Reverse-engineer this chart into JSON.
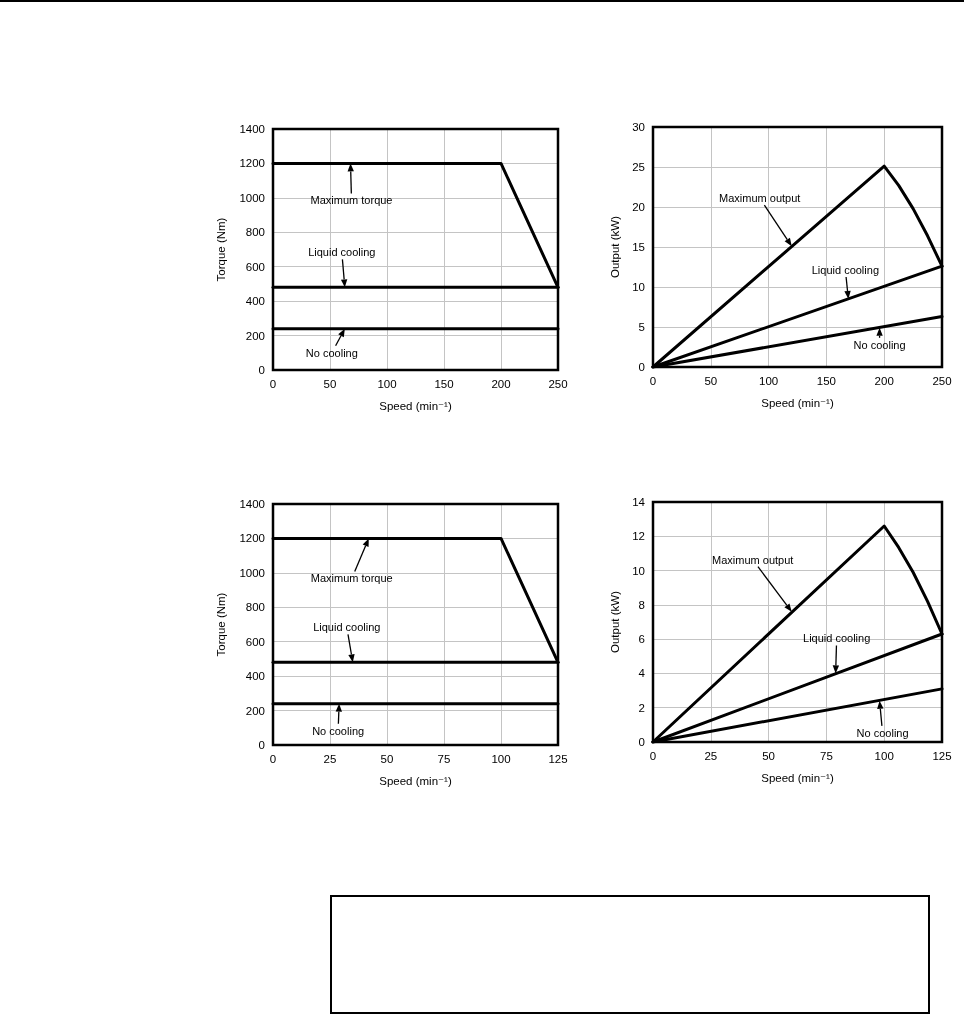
{
  "chart_data": [
    {
      "type": "line",
      "xlabel": "Speed (min⁻¹)",
      "ylabel": "Torque (Nm)",
      "xlim": [
        0,
        250
      ],
      "xticks": [
        0,
        50,
        100,
        150,
        200,
        250
      ],
      "ylim": [
        0,
        1400
      ],
      "yticks": [
        0,
        200,
        400,
        600,
        800,
        1000,
        1200,
        1400
      ],
      "grid": true,
      "line_style": "solid",
      "series": [
        {
          "color": "#000000",
          "x": [
            0,
            200,
            250
          ],
          "values": [
            1200,
            1200,
            480
          ]
        },
        {
          "color": "#000000",
          "x": [
            0,
            250
          ],
          "values": [
            480,
            480
          ]
        },
        {
          "color": "#000000",
          "x": [
            0,
            250
          ],
          "values": [
            240,
            240
          ]
        }
      ],
      "annotations": [
        {
          "text": "Maximum torque",
          "x": 68,
          "y": 1200
        },
        {
          "text": "Liquid cooling",
          "x": 63,
          "y": 480
        },
        {
          "text": "No cooling",
          "x": 63,
          "y": 240
        }
      ]
    },
    {
      "type": "line",
      "xlabel": "Speed (min⁻¹)",
      "ylabel": "Output (kW)",
      "xlim": [
        0,
        250
      ],
      "xticks": [
        0,
        50,
        100,
        150,
        200,
        250
      ],
      "ylim": [
        0,
        30
      ],
      "yticks": [
        0,
        5,
        10,
        15,
        20,
        25,
        30
      ],
      "grid": true,
      "line_style": "solid",
      "series": [
        {
          "color": "#000000",
          "x": [
            0,
            200,
            212.5,
            225,
            237.5,
            250
          ],
          "values": [
            0,
            25.1,
            22.7,
            19.8,
            16.4,
            12.6
          ]
        },
        {
          "color": "#000000",
          "x": [
            0,
            250
          ],
          "values": [
            0,
            12.6
          ]
        },
        {
          "color": "#000000",
          "x": [
            0,
            250
          ],
          "values": [
            0,
            6.3
          ]
        }
      ],
      "annotations": [
        {
          "text": "Maximum output",
          "x": 120,
          "y": 15.1
        },
        {
          "text": "Liquid cooling",
          "x": 169,
          "y": 8.5
        },
        {
          "text": "No cooling",
          "x": 196,
          "y": 4.9
        }
      ]
    },
    {
      "type": "line",
      "xlabel": "Speed (min⁻¹)",
      "ylabel": "Torque (Nm)",
      "xlim": [
        0,
        125
      ],
      "xticks": [
        0,
        25,
        50,
        75,
        100,
        125
      ],
      "ylim": [
        0,
        1400
      ],
      "yticks": [
        0,
        200,
        400,
        600,
        800,
        1000,
        1200,
        1400
      ],
      "grid": true,
      "line_style": "solid",
      "series": [
        {
          "color": "#000000",
          "x": [
            0,
            100,
            125
          ],
          "values": [
            1200,
            1200,
            480
          ]
        },
        {
          "color": "#000000",
          "x": [
            0,
            125
          ],
          "values": [
            480,
            480
          ]
        },
        {
          "color": "#000000",
          "x": [
            0,
            125
          ],
          "values": [
            240,
            240
          ]
        }
      ],
      "annotations": [
        {
          "text": "Maximum torque",
          "x": 42,
          "y": 1200
        },
        {
          "text": "Liquid cooling",
          "x": 35,
          "y": 480
        },
        {
          "text": "No cooling",
          "x": 29,
          "y": 240
        }
      ]
    },
    {
      "type": "line",
      "xlabel": "Speed (min⁻¹)",
      "ylabel": "Output (kW)",
      "xlim": [
        0,
        125
      ],
      "xticks": [
        0,
        25,
        50,
        75,
        100,
        125
      ],
      "ylim": [
        0,
        14
      ],
      "yticks": [
        0,
        2,
        4,
        6,
        8,
        10,
        12,
        14
      ],
      "grid": true,
      "line_style": "solid",
      "series": [
        {
          "color": "#000000",
          "x": [
            0,
            100,
            106.25,
            112.5,
            118.75,
            125
          ],
          "values": [
            0,
            12.6,
            11.35,
            9.9,
            8.2,
            6.3
          ]
        },
        {
          "color": "#000000",
          "x": [
            0,
            125
          ],
          "values": [
            0,
            6.3
          ]
        },
        {
          "color": "#000000",
          "x": [
            0,
            125
          ],
          "values": [
            0,
            3.1
          ]
        }
      ],
      "annotations": [
        {
          "text": "Maximum output",
          "x": 60,
          "y": 7.6
        },
        {
          "text": "Liquid cooling",
          "x": 79,
          "y": 4.0
        },
        {
          "text": "No cooling",
          "x": 98,
          "y": 2.4
        }
      ]
    }
  ]
}
